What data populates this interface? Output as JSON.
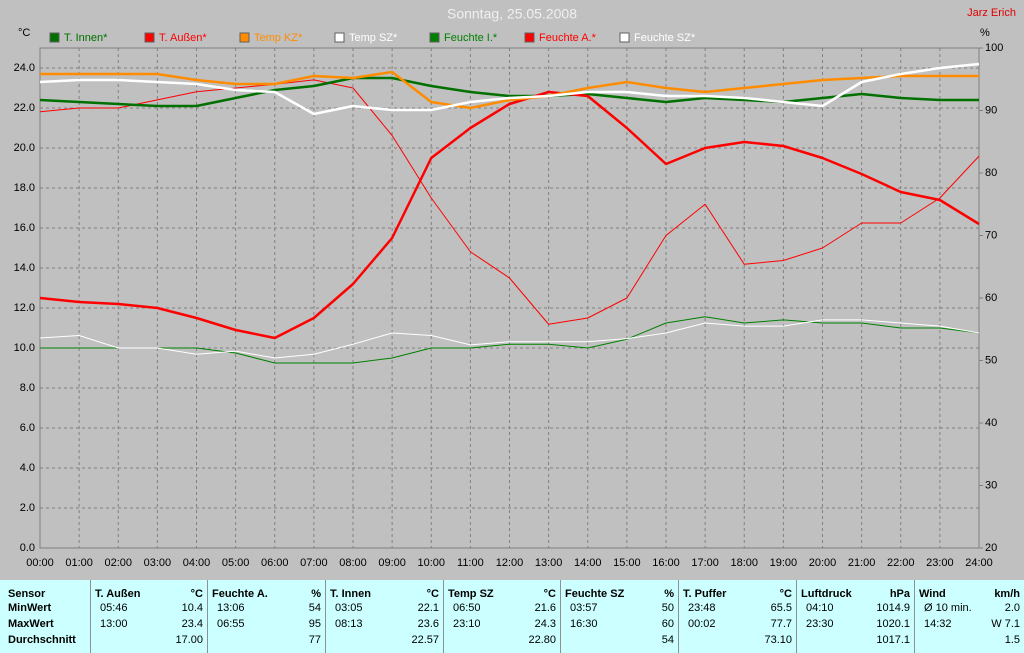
{
  "chart_data": {
    "type": "line",
    "title": "Sonntag, 25.05.2008",
    "author": "Jarz Erich",
    "y_label": "°C",
    "y2_label": "%",
    "xlim": [
      0,
      24
    ],
    "xticks": [
      {
        "value": 0,
        "label": "00:00"
      },
      {
        "value": 1,
        "label": "01:00"
      },
      {
        "value": 2,
        "label": "02:00"
      },
      {
        "value": 3,
        "label": "03:00"
      },
      {
        "value": 4,
        "label": "04:00"
      },
      {
        "value": 5,
        "label": "05:00"
      },
      {
        "value": 6,
        "label": "06:00"
      },
      {
        "value": 7,
        "label": "07:00"
      },
      {
        "value": 8,
        "label": "08:00"
      },
      {
        "value": 9,
        "label": "09:00"
      },
      {
        "value": 10,
        "label": "10:00"
      },
      {
        "value": 11,
        "label": "11:00"
      },
      {
        "value": 12,
        "label": "12:00"
      },
      {
        "value": 13,
        "label": "13:00"
      },
      {
        "value": 14,
        "label": "14:00"
      },
      {
        "value": 15,
        "label": "15:00"
      },
      {
        "value": 16,
        "label": "16:00"
      },
      {
        "value": 17,
        "label": "17:00"
      },
      {
        "value": 18,
        "label": "18:00"
      },
      {
        "value": 19,
        "label": "19:00"
      },
      {
        "value": 20,
        "label": "20:00"
      },
      {
        "value": 21,
        "label": "21:00"
      },
      {
        "value": 22,
        "label": "22:00"
      },
      {
        "value": 23,
        "label": "23:00"
      },
      {
        "value": 24,
        "label": "24:00"
      }
    ],
    "ylim": [
      0,
      25
    ],
    "yticks": [
      {
        "value": 0,
        "label": "0.0"
      },
      {
        "value": 2,
        "label": "2.0"
      },
      {
        "value": 4,
        "label": "4.0"
      },
      {
        "value": 6,
        "label": "6.0"
      },
      {
        "value": 8,
        "label": "8.0"
      },
      {
        "value": 10,
        "label": "10.0"
      },
      {
        "value": 12,
        "label": "12.0"
      },
      {
        "value": 14,
        "label": "14.0"
      },
      {
        "value": 16,
        "label": "16.0"
      },
      {
        "value": 18,
        "label": "18.0"
      },
      {
        "value": 20,
        "label": "20.0"
      },
      {
        "value": 22,
        "label": "22.0"
      },
      {
        "value": 24,
        "label": "24.0"
      }
    ],
    "y2lim": [
      20,
      100
    ],
    "y2ticks": [
      20,
      30,
      40,
      50,
      60,
      70,
      80,
      90,
      100
    ],
    "grid": true,
    "x": [
      0,
      1,
      2,
      3,
      4,
      5,
      6,
      7,
      8,
      9,
      10,
      11,
      12,
      13,
      14,
      15,
      16,
      17,
      18,
      19,
      20,
      21,
      22,
      23,
      24
    ],
    "series": [
      {
        "name": "T. Innen*",
        "color": "#007000",
        "axis": "y",
        "values": [
          22.4,
          22.3,
          22.2,
          22.1,
          22.1,
          22.5,
          22.9,
          23.1,
          23.5,
          23.5,
          23.1,
          22.8,
          22.6,
          22.6,
          22.7,
          22.5,
          22.3,
          22.5,
          22.4,
          22.3,
          22.5,
          22.7,
          22.5,
          22.4,
          22.4
        ]
      },
      {
        "name": "T. Außen*",
        "color": "#ff0000",
        "axis": "y",
        "values": [
          12.5,
          12.3,
          12.2,
          12.0,
          11.5,
          10.9,
          10.5,
          11.5,
          13.2,
          15.5,
          19.5,
          21.0,
          22.2,
          22.8,
          22.6,
          21.0,
          19.2,
          20.0,
          20.3,
          20.1,
          19.5,
          18.7,
          17.8,
          17.4,
          16.2
        ]
      },
      {
        "name": "Temp KZ*",
        "color": "#ff8c00",
        "axis": "y",
        "values": [
          23.7,
          23.7,
          23.7,
          23.7,
          23.4,
          23.2,
          23.2,
          23.6,
          23.5,
          23.8,
          22.3,
          22.0,
          22.4,
          22.6,
          23.0,
          23.3,
          23.0,
          22.8,
          23.0,
          23.2,
          23.4,
          23.5,
          23.6,
          23.6,
          23.6
        ]
      },
      {
        "name": "Temp SZ*",
        "color": "#ffffff",
        "axis": "y",
        "values": [
          23.3,
          23.4,
          23.4,
          23.3,
          23.2,
          22.9,
          22.8,
          21.7,
          22.1,
          21.9,
          21.9,
          22.3,
          22.5,
          22.6,
          22.8,
          22.8,
          22.6,
          22.6,
          22.5,
          22.3,
          22.1,
          23.3,
          23.7,
          24.0,
          24.2
        ]
      },
      {
        "name": "Feuchte I.*",
        "color": "#008000",
        "axis": "y2",
        "values": [
          52,
          52,
          52,
          52,
          52,
          51.2,
          49.6,
          49.6,
          49.6,
          50.4,
          52,
          52,
          52.6,
          52.6,
          52,
          53.4,
          56,
          57,
          56,
          56.5,
          56,
          56,
          55.2,
          55.2,
          54.4
        ]
      },
      {
        "name": "Feuchte A.*",
        "color": "#ff0000",
        "axis": "y2",
        "values": [
          89.8,
          90.4,
          90.4,
          91.7,
          93,
          93.6,
          94.2,
          94.9,
          93.6,
          86,
          76,
          67.4,
          63.2,
          55.8,
          56.8,
          60,
          70,
          75,
          65.4,
          66,
          68,
          72,
          72,
          76,
          82.7
        ]
      },
      {
        "name": "Feuchte SZ*",
        "color": "#ffffff",
        "axis": "y2",
        "values": [
          53.6,
          54,
          52,
          52,
          51,
          51.5,
          50.4,
          51,
          52.6,
          54.4,
          54,
          52.5,
          53,
          53,
          53,
          53.5,
          54.4,
          56,
          55.5,
          55.5,
          56.5,
          56.5,
          56,
          55.5,
          54.4
        ]
      }
    ]
  },
  "table": {
    "sensor": "Sensor",
    "row_labels": [
      "MinWert",
      "MaxWert",
      "Durchschnitt"
    ],
    "blocks": [
      {
        "name": "T. Außen",
        "unit": "°C",
        "min": [
          "05:46",
          "10.4"
        ],
        "max": [
          "13:00",
          "23.4"
        ],
        "avg": "17.00"
      },
      {
        "name": "Feuchte A.",
        "unit": "%",
        "min": [
          "13:06",
          "54"
        ],
        "max": [
          "06:55",
          "95"
        ],
        "avg": "77"
      },
      {
        "name": "T. Innen",
        "unit": "°C",
        "min": [
          "03:05",
          "22.1"
        ],
        "max": [
          "08:13",
          "23.6"
        ],
        "avg": "22.57"
      },
      {
        "name": "Temp SZ",
        "unit": "°C",
        "min": [
          "06:50",
          "21.6"
        ],
        "max": [
          "23:10",
          "24.3"
        ],
        "avg": "22.80"
      },
      {
        "name": "Feuchte SZ",
        "unit": "%",
        "min": [
          "03:57",
          "50"
        ],
        "max": [
          "16:30",
          "60"
        ],
        "avg": "54"
      },
      {
        "name": "T. Puffer",
        "unit": "°C",
        "min": [
          "23:48",
          "65.5"
        ],
        "max": [
          "00:02",
          "77.7"
        ],
        "avg": "73.10"
      },
      {
        "name": "Luftdruck",
        "unit": "hPa",
        "min": [
          "04:10",
          "1014.9"
        ],
        "max": [
          "23:30",
          "1020.1"
        ],
        "avg": "1017.1"
      },
      {
        "name": "Wind",
        "unit": "km/h",
        "min": [
          "Ø 10 min.",
          "2.0"
        ],
        "max": [
          "14:32",
          "W 7.1"
        ],
        "avg": "1.5"
      }
    ]
  }
}
